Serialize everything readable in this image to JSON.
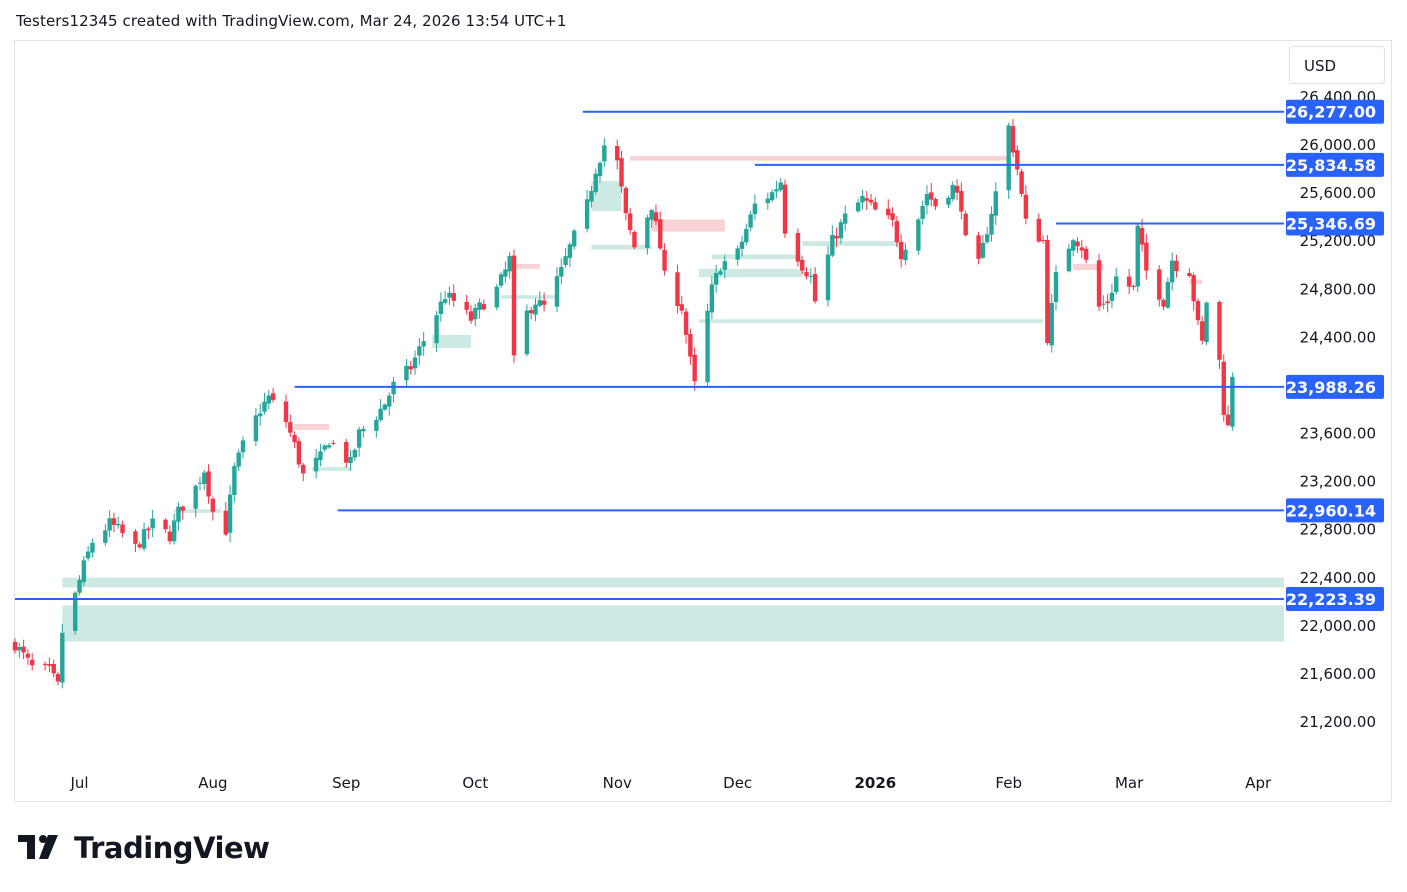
{
  "header": {
    "text": "Testers12345 created with TradingView.com, Mar 24, 2026 13:54 UTC+1"
  },
  "currency": "USD",
  "brand": {
    "name": "TradingView"
  },
  "colors": {
    "up": "#26a69a",
    "down": "#f23645",
    "level_line": "#2962ff",
    "level_label_bg": "#2962ff",
    "up_zone": "#cce9e3",
    "down_zone": "#f9d2d5",
    "grid_text": "#131722"
  },
  "chart_data": {
    "type": "candlestick",
    "title": "",
    "ylim": [
      21000,
      26500
    ],
    "y_ticks": [
      21200,
      21600,
      22000,
      22400,
      22800,
      23200,
      23600,
      24000,
      24400,
      24800,
      25200,
      25600,
      26000,
      26400
    ],
    "y_tick_labels": [
      "21,200.00",
      "21,600.00",
      "22,000.00",
      "22,400.00",
      "22,800.00",
      "23,200.00",
      "23,600.00",
      "24,000.00",
      "24,400.00",
      "24,800.00",
      "25,200.00",
      "25,600.00",
      "26,000.00",
      "26,400.00"
    ],
    "x_labels": [
      {
        "label": "Jul",
        "date": "2025-07-01",
        "bold": false
      },
      {
        "label": "Aug",
        "date": "2025-08-01",
        "bold": false
      },
      {
        "label": "Sep",
        "date": "2025-09-01",
        "bold": false
      },
      {
        "label": "Oct",
        "date": "2025-10-01",
        "bold": false
      },
      {
        "label": "Nov",
        "date": "2025-11-03",
        "bold": false
      },
      {
        "label": "Dec",
        "date": "2025-12-01",
        "bold": false
      },
      {
        "label": "2026",
        "date": "2026-01-02",
        "bold": true
      },
      {
        "label": "Feb",
        "date": "2026-02-02",
        "bold": false
      },
      {
        "label": "Mar",
        "date": "2026-03-02",
        "bold": false
      },
      {
        "label": "Apr",
        "date": "2026-04-01",
        "bold": false
      }
    ],
    "x_range": [
      "2025-06-16",
      "2026-04-07"
    ],
    "close_path": [
      [
        "2025-06-16",
        21850
      ],
      [
        "2025-06-20",
        21650
      ],
      [
        "2025-06-24",
        21620
      ],
      [
        "2025-06-26",
        21500
      ],
      [
        "2025-06-27",
        21950
      ],
      [
        "2025-06-30",
        22250
      ],
      [
        "2025-07-02",
        22500
      ],
      [
        "2025-07-04",
        22700
      ],
      [
        "2025-07-08",
        22850
      ],
      [
        "2025-07-10",
        22800
      ],
      [
        "2025-07-14",
        22650
      ],
      [
        "2025-07-16",
        22750
      ],
      [
        "2025-07-18",
        22850
      ],
      [
        "2025-07-22",
        22750
      ],
      [
        "2025-07-24",
        22950
      ],
      [
        "2025-07-28",
        23150
      ],
      [
        "2025-07-30",
        23300
      ],
      [
        "2025-08-01",
        22950
      ],
      [
        "2025-08-04",
        22800
      ],
      [
        "2025-08-06",
        23300
      ],
      [
        "2025-08-08",
        23500
      ],
      [
        "2025-08-12",
        23800
      ],
      [
        "2025-08-14",
        23900
      ],
      [
        "2025-08-18",
        23700
      ],
      [
        "2025-08-20",
        23500
      ],
      [
        "2025-08-22",
        23250
      ],
      [
        "2025-08-26",
        23400
      ],
      [
        "2025-08-28",
        23550
      ],
      [
        "2025-09-02",
        23350
      ],
      [
        "2025-09-04",
        23600
      ],
      [
        "2025-09-08",
        23750
      ],
      [
        "2025-09-10",
        23850
      ],
      [
        "2025-09-12",
        24000
      ],
      [
        "2025-09-16",
        24150
      ],
      [
        "2025-09-18",
        24300
      ],
      [
        "2025-09-22",
        24600
      ],
      [
        "2025-09-24",
        24750
      ],
      [
        "2025-09-26",
        24700
      ],
      [
        "2025-09-30",
        24550
      ],
      [
        "2025-10-02",
        24650
      ],
      [
        "2025-10-06",
        24800
      ],
      [
        "2025-10-08",
        24950
      ],
      [
        "2025-10-09",
        25050
      ],
      [
        "2025-10-10",
        24200
      ],
      [
        "2025-10-13",
        24600
      ],
      [
        "2025-10-15",
        24700
      ],
      [
        "2025-10-17",
        24650
      ],
      [
        "2025-10-21",
        24950
      ],
      [
        "2025-10-23",
        25150
      ],
      [
        "2025-10-27",
        25500
      ],
      [
        "2025-10-29",
        25800
      ],
      [
        "2025-10-31",
        26000
      ],
      [
        "2025-11-03",
        25850
      ],
      [
        "2025-11-05",
        25400
      ],
      [
        "2025-11-07",
        25150
      ],
      [
        "2025-11-11",
        25500
      ],
      [
        "2025-11-13",
        25150
      ],
      [
        "2025-11-14",
        24900
      ],
      [
        "2025-11-18",
        24650
      ],
      [
        "2025-11-20",
        24200
      ],
      [
        "2025-11-21",
        24000
      ],
      [
        "2025-11-25",
        24800
      ],
      [
        "2025-11-27",
        25000
      ],
      [
        "2025-12-01",
        25100
      ],
      [
        "2025-12-03",
        25300
      ],
      [
        "2025-12-05",
        25500
      ],
      [
        "2025-12-09",
        25600
      ],
      [
        "2025-12-11",
        25700
      ],
      [
        "2025-12-12",
        25300
      ],
      [
        "2025-12-16",
        25000
      ],
      [
        "2025-12-18",
        24900
      ],
      [
        "2025-12-19",
        24700
      ],
      [
        "2025-12-23",
        25200
      ],
      [
        "2025-12-26",
        25400
      ],
      [
        "2025-12-30",
        25550
      ],
      [
        "2026-01-02",
        25450
      ],
      [
        "2026-01-06",
        25350
      ],
      [
        "2026-01-08",
        25100
      ],
      [
        "2026-01-12",
        25400
      ],
      [
        "2026-01-14",
        25600
      ],
      [
        "2026-01-16",
        25500
      ],
      [
        "2026-01-20",
        25650
      ],
      [
        "2026-01-22",
        25500
      ],
      [
        "2026-01-23",
        25200
      ],
      [
        "2026-01-26",
        25000
      ],
      [
        "2026-01-28",
        25300
      ],
      [
        "2026-01-30",
        25600
      ],
      [
        "2026-02-02",
        26150
      ],
      [
        "2026-02-04",
        25800
      ],
      [
        "2026-02-06",
        25350
      ],
      [
        "2026-02-10",
        25200
      ],
      [
        "2026-02-11",
        24400
      ],
      [
        "2026-02-13",
        24900
      ],
      [
        "2026-02-17",
        25250
      ],
      [
        "2026-02-19",
        25150
      ],
      [
        "2026-02-23",
        24650
      ],
      [
        "2026-02-25",
        24700
      ],
      [
        "2026-02-27",
        24900
      ],
      [
        "2026-03-03",
        24800
      ],
      [
        "2026-03-04",
        25300
      ],
      [
        "2026-03-06",
        24950
      ],
      [
        "2026-03-10",
        24700
      ],
      [
        "2026-03-12",
        25050
      ],
      [
        "2026-03-13",
        25000
      ],
      [
        "2026-03-16",
        24950
      ],
      [
        "2026-03-18",
        24500
      ],
      [
        "2026-03-19",
        24350
      ],
      [
        "2026-03-20",
        24700
      ],
      [
        "2026-03-23",
        24200
      ],
      [
        "2026-03-24",
        23800
      ],
      [
        "2026-03-25",
        23650
      ],
      [
        "2026-03-26",
        24100
      ]
    ],
    "level_lines": [
      {
        "value": 26277.0,
        "label": "26,277.00",
        "from": "2025-10-26"
      },
      {
        "value": 25834.58,
        "label": "25,834.58",
        "from": "2025-12-05"
      },
      {
        "value": 25346.69,
        "label": "25,346.69",
        "from": "2026-02-13"
      },
      {
        "value": 23988.26,
        "label": "23,988.26",
        "from": "2025-08-20"
      },
      {
        "value": 22960.14,
        "label": "22,960.14",
        "from": "2025-08-30"
      },
      {
        "value": 22223.39,
        "label": "22,223.39",
        "from": "2025-06-16"
      }
    ],
    "zones": [
      {
        "kind": "up",
        "from": "2025-06-27",
        "y1": 22320,
        "y2": 22400
      },
      {
        "kind": "up",
        "from": "2025-06-27",
        "y1": 21870,
        "y2": 22170
      },
      {
        "kind": "up",
        "from": "2025-10-28",
        "to": "2025-11-04",
        "y1": 25450,
        "y2": 25700
      },
      {
        "kind": "up",
        "from": "2025-10-28",
        "to": "2025-11-11",
        "y1": 25130,
        "y2": 25170
      },
      {
        "kind": "up",
        "from": "2025-11-22",
        "to": "2026-02-10",
        "y1": 24520,
        "y2": 24550
      },
      {
        "kind": "up",
        "from": "2025-11-22",
        "to": "2025-12-16",
        "y1": 24900,
        "y2": 24970
      },
      {
        "kind": "up",
        "from": "2025-11-25",
        "to": "2025-12-16",
        "y1": 25050,
        "y2": 25090
      },
      {
        "kind": "up",
        "from": "2025-12-16",
        "to": "2026-01-08",
        "y1": 25160,
        "y2": 25200
      },
      {
        "kind": "up",
        "from": "2025-09-21",
        "to": "2025-09-30",
        "y1": 24310,
        "y2": 24420
      },
      {
        "kind": "up",
        "from": "2025-10-07",
        "to": "2025-10-20",
        "y1": 24720,
        "y2": 24750
      },
      {
        "kind": "up",
        "from": "2025-08-24",
        "to": "2025-09-02",
        "y1": 23290,
        "y2": 23320
      },
      {
        "kind": "up",
        "from": "2025-07-23",
        "to": "2025-08-03",
        "y1": 22940,
        "y2": 22970
      },
      {
        "kind": "down",
        "from": "2025-11-06",
        "to": "2026-02-02",
        "y1": 25870,
        "y2": 25910
      },
      {
        "kind": "down",
        "from": "2025-11-11",
        "to": "2025-11-28",
        "y1": 25280,
        "y2": 25380
      },
      {
        "kind": "down",
        "from": "2025-08-20",
        "to": "2025-08-28",
        "y1": 23630,
        "y2": 23680
      },
      {
        "kind": "down",
        "from": "2025-10-09",
        "to": "2025-10-16",
        "y1": 24970,
        "y2": 25010
      },
      {
        "kind": "down",
        "from": "2026-02-17",
        "to": "2026-02-24",
        "y1": 24960,
        "y2": 25010
      },
      {
        "kind": "down",
        "from": "2026-03-16",
        "to": "2026-03-19",
        "y1": 24840,
        "y2": 24880
      }
    ]
  }
}
